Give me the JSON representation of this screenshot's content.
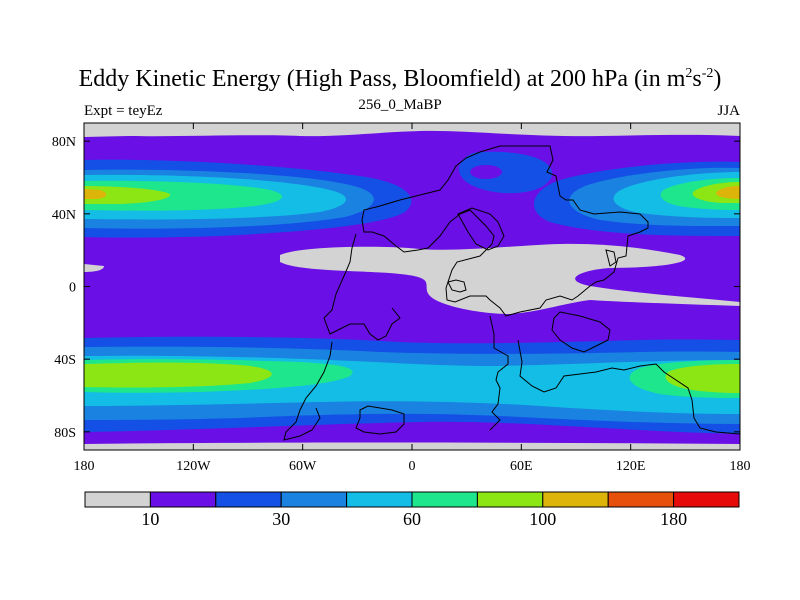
{
  "title": {
    "main": "Eddy Kinetic Energy (High Pass, Bloomfield) at 200 hPa (in m",
    "sup1": "2",
    "mid": "s",
    "sup2": "-2",
    "end": ")"
  },
  "subtitle": "256_0_MaBP",
  "left_label": "Expt = teyEz",
  "right_label": "JJA",
  "axes": {
    "x_ticks": [
      {
        "lon": -180,
        "label": "180"
      },
      {
        "lon": -120,
        "label": "120W"
      },
      {
        "lon": -60,
        "label": "60W"
      },
      {
        "lon": 0,
        "label": "0"
      },
      {
        "lon": 60,
        "label": "60E"
      },
      {
        "lon": 120,
        "label": "120E"
      },
      {
        "lon": 180,
        "label": "180"
      }
    ],
    "y_ticks": [
      {
        "lat": 80,
        "label": "80N"
      },
      {
        "lat": 40,
        "label": "40N"
      },
      {
        "lat": 0,
        "label": "0"
      },
      {
        "lat": -40,
        "label": "40S"
      },
      {
        "lat": -80,
        "label": "80S"
      }
    ],
    "lon_range": [
      -180,
      180
    ],
    "lat_range": [
      -90,
      90
    ]
  },
  "colorbar": {
    "colors": [
      "#d3d3d3",
      "#6a0fe6",
      "#1450e6",
      "#1a82e0",
      "#13bde6",
      "#1ee68c",
      "#8ce614",
      "#dcb40a",
      "#e6500a",
      "#e60a0a"
    ],
    "labels": [
      {
        "after_box": 1,
        "text": "10"
      },
      {
        "after_box": 3,
        "text": "30"
      },
      {
        "after_box": 5,
        "text": "60"
      },
      {
        "after_box": 7,
        "text": "100"
      },
      {
        "after_box": 9,
        "text": "180"
      }
    ]
  }
}
